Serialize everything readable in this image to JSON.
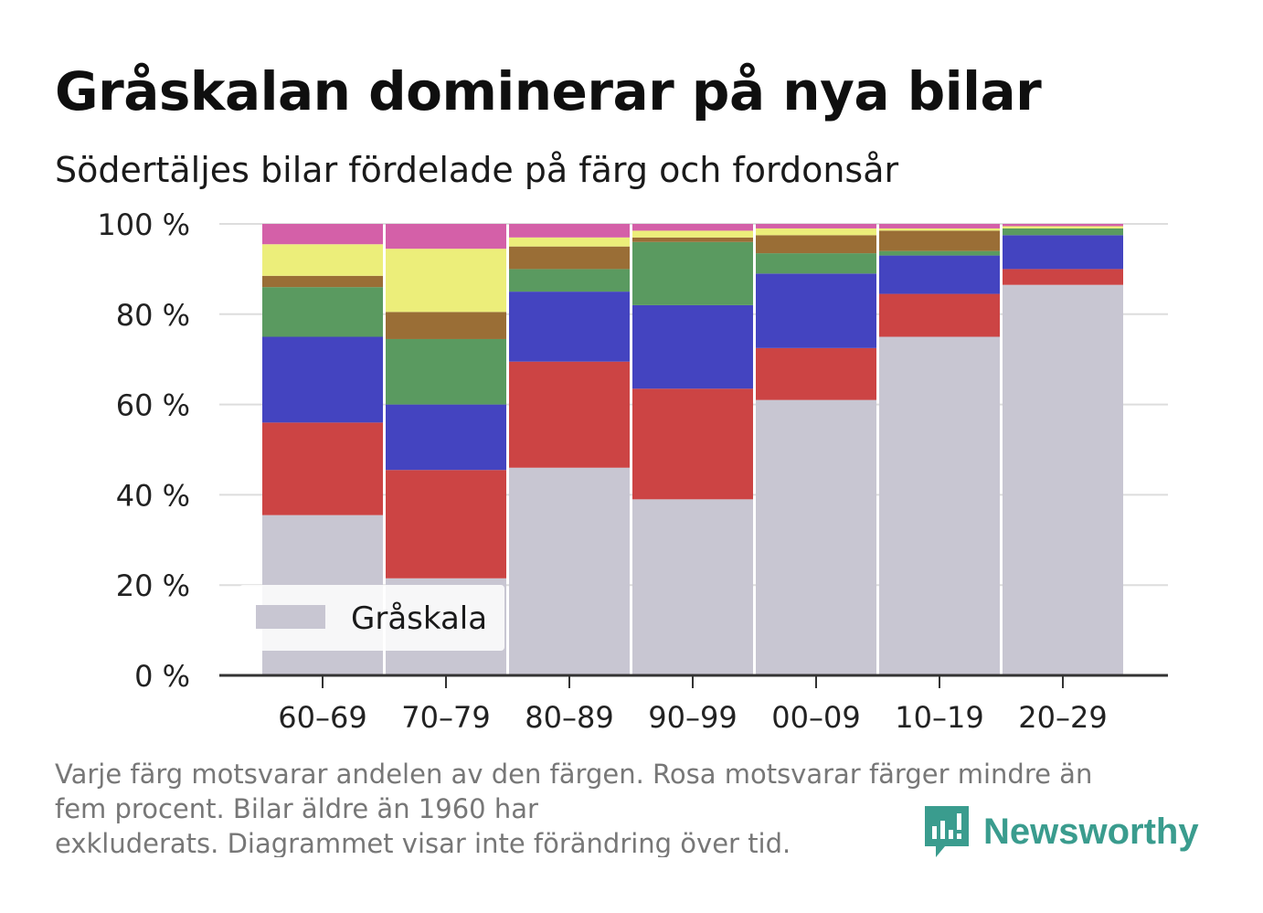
{
  "header": {
    "title": "Gråskalan dominerar på nya bilar",
    "subtitle": "Södertäljes bilar fördelade på färg och fordonsår"
  },
  "footnote": {
    "line1": "Varje färg motsvarar andelen av den färgen. Rosa motsvarar färger mindre än",
    "line2": "fem procent. Bilar äldre än 1960 har",
    "line3": "exkluderats. Diagrammet visar inte förändring över tid."
  },
  "logo": {
    "text": "Newsworthy",
    "icon": "bar-chart-bubble-icon"
  },
  "colors": {
    "gray": "#c8c6d2",
    "red": "#cc4444",
    "blue": "#4444c0",
    "green": "#5a9a60",
    "brown": "#9a6e36",
    "yellow": "#ecee7a",
    "pink": "#d460a8",
    "axis": "#333333",
    "grid": "#dddddd",
    "brand": "#3a9c8e"
  },
  "chart_data": {
    "type": "bar",
    "stacked": true,
    "categories": [
      "60–69",
      "70–79",
      "80–89",
      "90–99",
      "00–09",
      "10–19",
      "20–29"
    ],
    "ylim": [
      0,
      100
    ],
    "yticks": [
      "0 %",
      "20 %",
      "40 %",
      "60 %",
      "80 %",
      "100 %"
    ],
    "grid": true,
    "legend_position": "bottom-left",
    "legend": [
      "Gråskala"
    ],
    "series": [
      {
        "name": "Gråskala",
        "color": "gray",
        "values": [
          35.5,
          21.5,
          46,
          39,
          61,
          75,
          86.5
        ]
      },
      {
        "color": "red",
        "values": [
          20.5,
          24,
          23.5,
          24.5,
          11.5,
          9.5,
          3.5
        ]
      },
      {
        "color": "blue",
        "values": [
          19,
          14.5,
          15.5,
          18.5,
          16.5,
          8.5,
          7.5
        ]
      },
      {
        "color": "green",
        "values": [
          11,
          14.5,
          5,
          14,
          4.5,
          1,
          1.5
        ]
      },
      {
        "color": "brown",
        "values": [
          2.5,
          6,
          5,
          1,
          4,
          4.5,
          0
        ]
      },
      {
        "color": "yellow",
        "values": [
          7,
          14,
          2,
          1.5,
          1.5,
          0.5,
          0.5
        ]
      },
      {
        "color": "pink",
        "values": [
          4.5,
          5.5,
          3,
          1.5,
          1,
          1,
          0.5
        ]
      }
    ]
  }
}
